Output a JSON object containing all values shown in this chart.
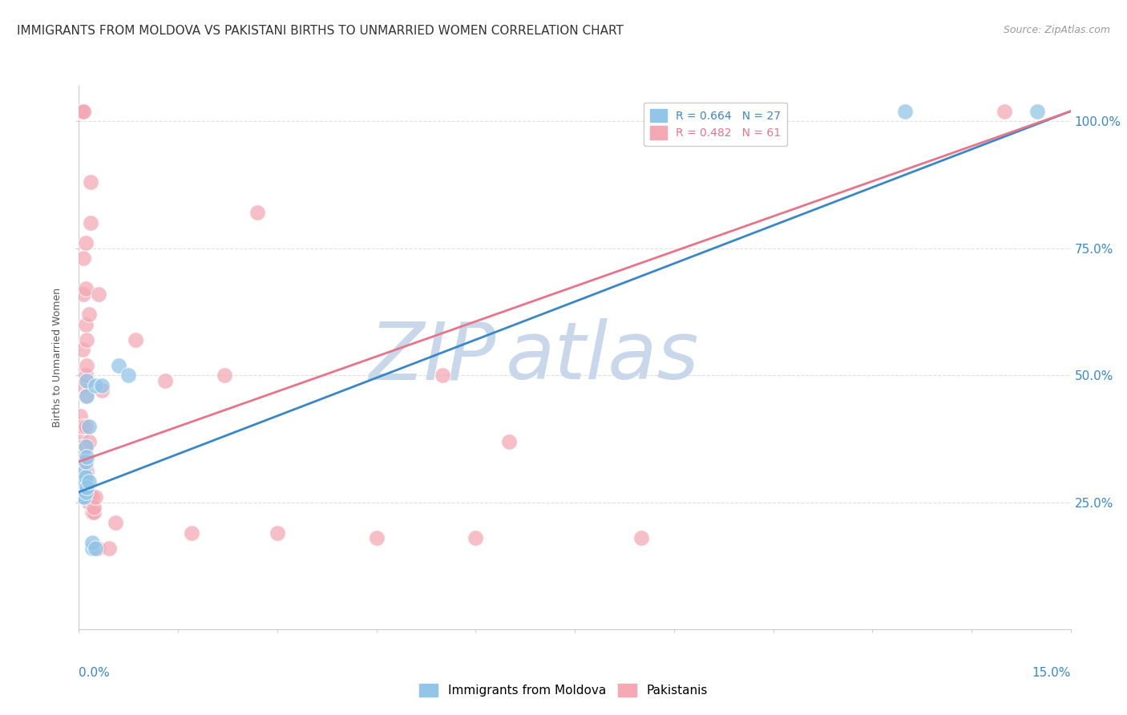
{
  "title": "IMMIGRANTS FROM MOLDOVA VS PAKISTANI BIRTHS TO UNMARRIED WOMEN CORRELATION CHART",
  "source": "Source: ZipAtlas.com",
  "ylabel": "Births to Unmarried Women",
  "xlim": [
    0.0,
    15.0
  ],
  "ylim": [
    0.0,
    107.0
  ],
  "right_yticks": [
    25.0,
    50.0,
    75.0,
    100.0
  ],
  "right_yticklabels": [
    "25.0%",
    "50.0%",
    "75.0%",
    "100.0%"
  ],
  "legend": {
    "blue_label": "R = 0.664   N = 27",
    "pink_label": "R = 0.482   N = 61"
  },
  "watermark_zip": "ZIP",
  "watermark_atlas": "atlas",
  "blue_scatter": [
    [
      0.05,
      26.0
    ],
    [
      0.05,
      28.0
    ],
    [
      0.05,
      29.0
    ],
    [
      0.05,
      30.0
    ],
    [
      0.08,
      26.0
    ],
    [
      0.08,
      27.5
    ],
    [
      0.08,
      29.0
    ],
    [
      0.08,
      31.0
    ],
    [
      0.1,
      27.0
    ],
    [
      0.1,
      30.0
    ],
    [
      0.1,
      33.0
    ],
    [
      0.1,
      36.0
    ],
    [
      0.12,
      28.0
    ],
    [
      0.12,
      34.0
    ],
    [
      0.12,
      46.0
    ],
    [
      0.12,
      49.0
    ],
    [
      0.15,
      29.0
    ],
    [
      0.15,
      40.0
    ],
    [
      0.2,
      16.0
    ],
    [
      0.2,
      17.0
    ],
    [
      0.25,
      16.0
    ],
    [
      0.25,
      48.0
    ],
    [
      0.35,
      48.0
    ],
    [
      0.6,
      52.0
    ],
    [
      0.75,
      50.0
    ],
    [
      12.5,
      102.0
    ],
    [
      14.5,
      102.0
    ]
  ],
  "pink_scatter": [
    [
      0.02,
      30.0
    ],
    [
      0.02,
      32.0
    ],
    [
      0.02,
      34.0
    ],
    [
      0.02,
      36.0
    ],
    [
      0.02,
      38.0
    ],
    [
      0.02,
      40.0
    ],
    [
      0.02,
      42.0
    ],
    [
      0.02,
      102.0
    ],
    [
      0.05,
      29.0
    ],
    [
      0.05,
      30.0
    ],
    [
      0.05,
      31.0
    ],
    [
      0.05,
      32.0
    ],
    [
      0.05,
      34.0
    ],
    [
      0.05,
      36.0
    ],
    [
      0.05,
      40.0
    ],
    [
      0.05,
      48.0
    ],
    [
      0.05,
      55.0
    ],
    [
      0.07,
      66.0
    ],
    [
      0.07,
      73.0
    ],
    [
      0.07,
      102.0
    ],
    [
      0.07,
      102.0
    ],
    [
      0.1,
      29.0
    ],
    [
      0.1,
      32.0
    ],
    [
      0.1,
      36.0
    ],
    [
      0.1,
      40.0
    ],
    [
      0.1,
      46.0
    ],
    [
      0.1,
      50.0
    ],
    [
      0.1,
      60.0
    ],
    [
      0.1,
      67.0
    ],
    [
      0.1,
      76.0
    ],
    [
      0.12,
      31.0
    ],
    [
      0.12,
      36.0
    ],
    [
      0.12,
      52.0
    ],
    [
      0.12,
      57.0
    ],
    [
      0.15,
      25.0
    ],
    [
      0.15,
      26.0
    ],
    [
      0.15,
      37.0
    ],
    [
      0.15,
      62.0
    ],
    [
      0.2,
      23.0
    ],
    [
      0.2,
      26.0
    ],
    [
      0.22,
      23.0
    ],
    [
      0.22,
      24.0
    ],
    [
      0.28,
      16.0
    ],
    [
      0.45,
      16.0
    ],
    [
      0.55,
      21.0
    ],
    [
      0.85,
      57.0
    ],
    [
      1.3,
      49.0
    ],
    [
      1.7,
      19.0
    ],
    [
      2.2,
      50.0
    ],
    [
      2.7,
      82.0
    ],
    [
      3.0,
      19.0
    ],
    [
      4.5,
      18.0
    ],
    [
      5.5,
      50.0
    ],
    [
      6.0,
      18.0
    ],
    [
      6.5,
      37.0
    ],
    [
      8.5,
      18.0
    ],
    [
      14.0,
      102.0
    ],
    [
      0.35,
      47.0
    ],
    [
      0.25,
      26.0
    ],
    [
      0.18,
      88.0
    ],
    [
      0.18,
      80.0
    ],
    [
      0.3,
      66.0
    ]
  ],
  "blue_line": [
    [
      0.0,
      27.0
    ],
    [
      15.0,
      102.0
    ]
  ],
  "pink_line": [
    [
      0.0,
      33.0
    ],
    [
      15.0,
      102.0
    ]
  ],
  "blue_color": "#92c5e8",
  "pink_color": "#f4a8b4",
  "blue_line_color": "#3a87c8",
  "pink_line_color": "#e8748a",
  "grid_color": "#e0e0e0",
  "background_color": "#ffffff",
  "title_fontsize": 11,
  "source_fontsize": 9,
  "axis_label_fontsize": 9,
  "legend_fontsize": 10,
  "watermark_zip_color": "#c8d8ea",
  "watermark_atlas_color": "#c8d8ea",
  "watermark_fontsize_zip": 72,
  "watermark_fontsize_atlas": 72
}
